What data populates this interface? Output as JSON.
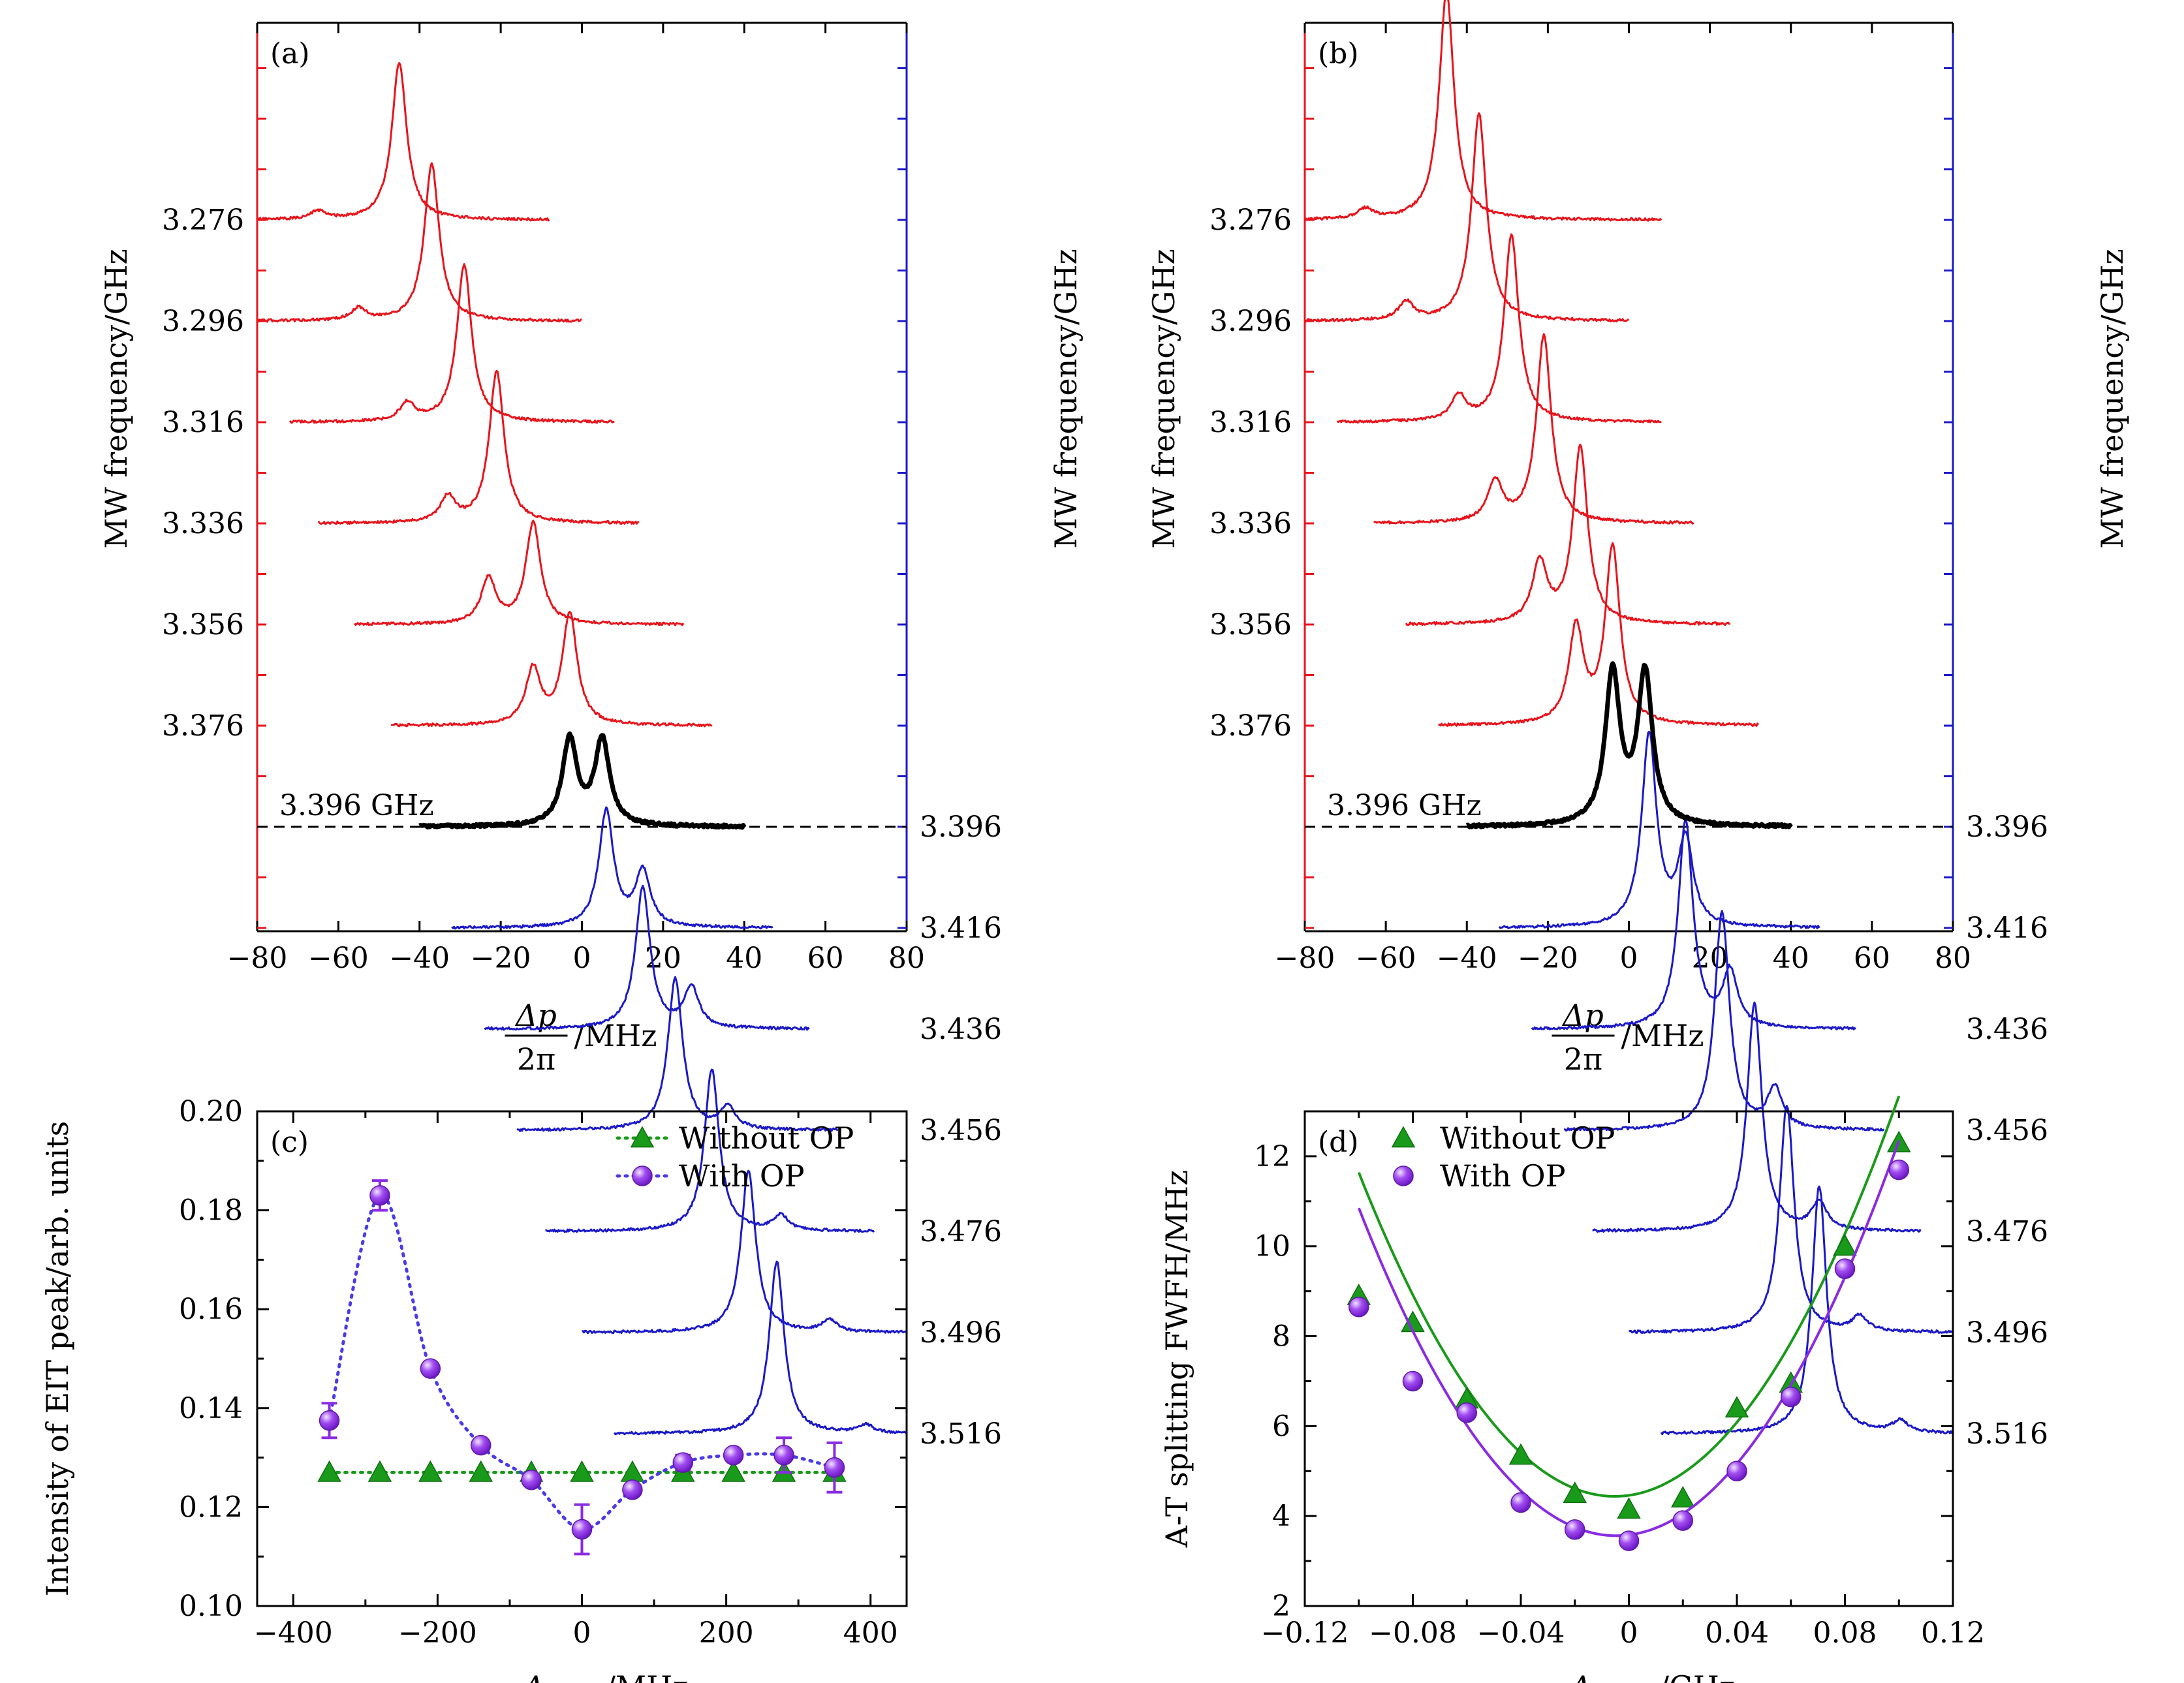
{
  "chart_data": [
    {
      "panel": "(a)",
      "type": "line",
      "xlabel": {
        "numerator": "Δp",
        "denominator": "2π",
        "unit": "/MHz"
      },
      "ylabel_left": "MW frequency/GHz",
      "ylabel_right": "MW frequency/GHz",
      "xlim": [
        -80,
        80
      ],
      "xticks": [
        "−80",
        "−60",
        "−40",
        "−20",
        "0",
        "20",
        "40",
        "60",
        "80"
      ],
      "left_ticks": [
        "3.276",
        "3.296",
        "3.316",
        "3.336",
        "3.356",
        "3.376"
      ],
      "right_ticks": [
        "3.516",
        "3.496",
        "3.476",
        "3.456",
        "3.436",
        "3.416",
        "3.396"
      ],
      "reference_label": "3.396 GHz",
      "colors": {
        "left": "#e8141c",
        "right": "#1b19c8",
        "reference": "#000000"
      },
      "red_traces": [
        {
          "freq": 3.276,
          "peaks": [
            [
              -45,
              1.55
            ],
            [
              -65,
              0.08
            ]
          ],
          "xrange": [
            -80,
            -8
          ]
        },
        {
          "freq": 3.296,
          "peaks": [
            [
              -37,
              1.55
            ],
            [
              -55,
              0.12
            ]
          ],
          "xrange": [
            -80,
            0
          ]
        },
        {
          "freq": 3.316,
          "peaks": [
            [
              -29,
              1.55
            ],
            [
              -43,
              0.18
            ]
          ],
          "xrange": [
            -72,
            8
          ]
        },
        {
          "freq": 3.336,
          "peaks": [
            [
              -21,
              1.5
            ],
            [
              -33,
              0.25
            ]
          ],
          "xrange": [
            -65,
            14
          ]
        },
        {
          "freq": 3.356,
          "peaks": [
            [
              -12,
              1.0
            ],
            [
              -23,
              0.45
            ]
          ],
          "xrange": [
            -56,
            25
          ]
        },
        {
          "freq": 3.376,
          "peaks": [
            [
              -3,
              1.1
            ],
            [
              -12,
              0.55
            ]
          ],
          "xrange": [
            -47,
            32
          ]
        }
      ],
      "blue_traces": [
        {
          "freq": 3.516,
          "peaks": [
            [
              48,
              1.7
            ],
            [
              70,
              0.08
            ]
          ],
          "xrange": [
            8,
            80
          ]
        },
        {
          "freq": 3.496,
          "peaks": [
            [
              41,
              1.6
            ],
            [
              61,
              0.12
            ]
          ],
          "xrange": [
            0,
            80
          ]
        },
        {
          "freq": 3.476,
          "peaks": [
            [
              32,
              1.6
            ],
            [
              49,
              0.15
            ]
          ],
          "xrange": [
            -9,
            72
          ]
        },
        {
          "freq": 3.456,
          "peaks": [
            [
              23,
              1.5
            ],
            [
              36,
              0.22
            ]
          ],
          "xrange": [
            -16,
            63
          ]
        },
        {
          "freq": 3.436,
          "peaks": [
            [
              15,
              1.4
            ],
            [
              27,
              0.4
            ]
          ],
          "xrange": [
            -24,
            56
          ]
        },
        {
          "freq": 3.416,
          "peaks": [
            [
              6,
              1.15
            ],
            [
              15,
              0.55
            ]
          ],
          "xrange": [
            -32,
            47
          ]
        }
      ],
      "black_trace": {
        "freq": 3.396,
        "peaks": [
          [
            -3,
            0.85
          ],
          [
            5,
            0.85
          ]
        ],
        "xrange": [
          -40,
          40
        ]
      }
    },
    {
      "panel": "(b)",
      "type": "line",
      "xlabel": {
        "numerator": "Δp",
        "denominator": "2π",
        "unit": "/MHz"
      },
      "ylabel_left": "MW frequency/GHz",
      "ylabel_right": "MW frequency/GHz",
      "xlim": [
        -80,
        80
      ],
      "xticks": [
        "−80",
        "−60",
        "−40",
        "−20",
        "0",
        "20",
        "40",
        "60",
        "80"
      ],
      "left_ticks": [
        "3.276",
        "3.296",
        "3.316",
        "3.336",
        "3.356",
        "3.376"
      ],
      "right_ticks": [
        "3.516",
        "3.496",
        "3.476",
        "3.456",
        "3.436",
        "3.416",
        "3.396"
      ],
      "reference_label": "3.396 GHz",
      "colors": {
        "left": "#e8141c",
        "right": "#1b19c8",
        "reference": "#000000"
      },
      "red_traces": [
        {
          "freq": 3.276,
          "peaks": [
            [
              -45,
              2.25
            ],
            [
              -65,
              0.1
            ]
          ],
          "xrange": [
            -80,
            8
          ]
        },
        {
          "freq": 3.296,
          "peaks": [
            [
              -37,
              2.05
            ],
            [
              -55,
              0.18
            ]
          ],
          "xrange": [
            -80,
            0
          ]
        },
        {
          "freq": 3.316,
          "peaks": [
            [
              -29,
              1.85
            ],
            [
              -42,
              0.25
            ]
          ],
          "xrange": [
            -72,
            8
          ]
        },
        {
          "freq": 3.336,
          "peaks": [
            [
              -21,
              1.85
            ],
            [
              -33,
              0.4
            ]
          ],
          "xrange": [
            -63,
            16
          ]
        },
        {
          "freq": 3.356,
          "peaks": [
            [
              -12,
              1.75
            ],
            [
              -22,
              0.6
            ]
          ],
          "xrange": [
            -55,
            25
          ]
        },
        {
          "freq": 3.376,
          "peaks": [
            [
              -4,
              1.75
            ],
            [
              -13,
              0.95
            ]
          ],
          "xrange": [
            -47,
            32
          ]
        }
      ],
      "blue_traces": [
        {
          "freq": 3.516,
          "peaks": [
            [
              47,
              2.45
            ],
            [
              67,
              0.12
            ]
          ],
          "xrange": [
            8,
            80
          ]
        },
        {
          "freq": 3.496,
          "peaks": [
            [
              39,
              2.25
            ],
            [
              57,
              0.15
            ]
          ],
          "xrange": [
            0,
            80
          ]
        },
        {
          "freq": 3.476,
          "peaks": [
            [
              31,
              2.25
            ],
            [
              47,
              0.28
            ]
          ],
          "xrange": [
            -9,
            72
          ]
        },
        {
          "freq": 3.456,
          "peaks": [
            [
              23,
              2.15
            ],
            [
              36,
              0.4
            ]
          ],
          "xrange": [
            -16,
            63
          ]
        },
        {
          "freq": 3.436,
          "peaks": [
            [
              14,
              2.05
            ],
            [
              25,
              0.55
            ]
          ],
          "xrange": [
            -24,
            56
          ]
        },
        {
          "freq": 3.416,
          "peaks": [
            [
              5,
              1.9
            ],
            [
              14,
              0.85
            ]
          ],
          "xrange": [
            -32,
            47
          ]
        }
      ],
      "black_trace": {
        "freq": 3.396,
        "peaks": [
          [
            -4,
            1.5
          ],
          [
            4,
            1.5
          ]
        ],
        "xrange": [
          -40,
          40
        ]
      }
    },
    {
      "panel": "(c)",
      "type": "scatter",
      "xlabel": {
        "symbol": "Δ",
        "sub": "OP",
        "unit": "/MHz"
      },
      "ylabel": "Intensity of EIT peak/arb. units",
      "xlim": [
        -450,
        450
      ],
      "ylim": [
        0.1,
        0.2
      ],
      "xticks": [
        -400,
        -200,
        0,
        200,
        400
      ],
      "xtick_labels": [
        "−400",
        "−200",
        "0",
        "200",
        "400"
      ],
      "yticks": [
        0.1,
        0.12,
        0.14,
        0.16,
        0.18,
        0.2
      ],
      "ytick_labels": [
        "0.10",
        "0.12",
        "0.14",
        "0.16",
        "0.18",
        "0.20"
      ],
      "legend_position": "top-right",
      "series": [
        {
          "name": "Without OP",
          "marker": "triangle",
          "color": "#1a9a1a",
          "x": [
            -350,
            -280,
            -210,
            -140,
            -70,
            0,
            70,
            140,
            210,
            280,
            350
          ],
          "y": [
            0.127,
            0.127,
            0.127,
            0.127,
            0.127,
            0.127,
            0.127,
            0.127,
            0.127,
            0.127,
            0.127
          ],
          "err": [
            0,
            0,
            0,
            0,
            0,
            0,
            0,
            0,
            0,
            0,
            0
          ]
        },
        {
          "name": "With OP",
          "marker": "sphere",
          "color": "#8a2be2",
          "x": [
            -350,
            -280,
            -210,
            -140,
            -70,
            0,
            70,
            140,
            210,
            280,
            350
          ],
          "y": [
            0.1375,
            0.183,
            0.148,
            0.1325,
            0.1255,
            0.1155,
            0.1235,
            0.129,
            0.1305,
            0.1305,
            0.128
          ],
          "err": [
            0.0035,
            0.003,
            0.0005,
            0.0005,
            0.0005,
            0.005,
            0.0005,
            0.0015,
            0.001,
            0.0035,
            0.005
          ]
        }
      ]
    },
    {
      "panel": "(d)",
      "type": "scatter",
      "xlabel": {
        "symbol": "Δ",
        "sub": "MW",
        "unit": "/GHz"
      },
      "ylabel": "A-T splitting FWFH/MHz",
      "xlim": [
        -0.12,
        0.12
      ],
      "ylim": [
        2,
        13
      ],
      "xticks": [
        -0.12,
        -0.08,
        -0.04,
        0,
        0.04,
        0.08,
        0.12
      ],
      "xtick_labels": [
        "−0.12",
        "−0.08",
        "−0.04",
        "0",
        "0.04",
        "0.08",
        "0.12"
      ],
      "yticks": [
        2,
        4,
        6,
        8,
        10,
        12
      ],
      "ytick_labels": [
        "2",
        "4",
        "6",
        "8",
        "10",
        "12"
      ],
      "legend_position": "top-left",
      "series": [
        {
          "name": "Without OP",
          "marker": "triangle",
          "color": "#1a9a1a",
          "x": [
            -0.1,
            -0.08,
            -0.06,
            -0.04,
            -0.02,
            0,
            0.02,
            0.04,
            0.06,
            0.08,
            0.1
          ],
          "y": [
            8.9,
            8.3,
            6.6,
            5.35,
            4.5,
            4.15,
            4.4,
            6.4,
            6.95,
            10.0,
            12.3
          ],
          "fit": {
            "a": 803,
            "b": 8.5,
            "c": 4.46
          }
        },
        {
          "name": "With OP",
          "marker": "sphere",
          "color": "#8a2be2",
          "x": [
            -0.1,
            -0.08,
            -0.06,
            -0.04,
            -0.02,
            0,
            0.02,
            0.04,
            0.06,
            0.08,
            0.1
          ],
          "y": [
            8.65,
            7.0,
            6.3,
            4.3,
            3.7,
            3.45,
            3.9,
            5.0,
            6.65,
            9.5,
            11.7
          ],
          "fit": {
            "a": 802,
            "b": 7.5,
            "c": 3.58
          }
        }
      ]
    }
  ]
}
